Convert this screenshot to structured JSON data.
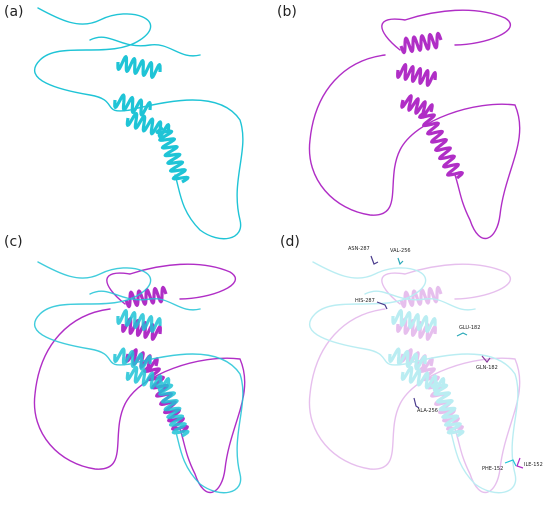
{
  "panels": [
    "(a)",
    "(b)",
    "(c)",
    "(d)"
  ],
  "residue_labels": [
    "ASN-287",
    "VAL-256",
    "HIS-287",
    "GLU-182",
    "GLN-182",
    "ALA-256",
    "PHE-152",
    "ILE-152"
  ]
}
